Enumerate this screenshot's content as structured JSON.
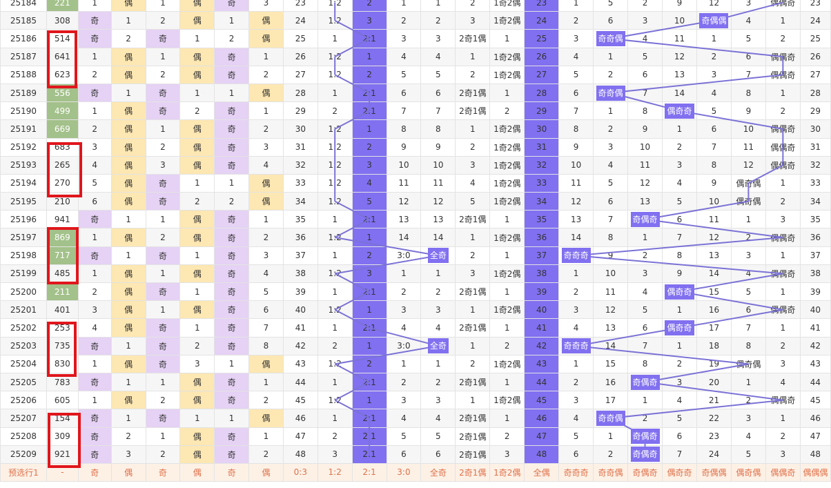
{
  "footer_label": "预选行1",
  "footer_cells": [
    "-",
    "奇",
    "偶",
    "奇",
    "偶",
    "奇",
    "偶",
    "0:3",
    "1:2",
    "2:1",
    "3:0",
    "全奇",
    "2奇1偶",
    "1奇2偶",
    "全偶",
    "奇奇奇",
    "奇奇偶",
    "奇偶奇",
    "偶奇奇",
    "奇偶偶",
    "偶奇偶",
    "偶偶奇",
    "偶偶偶"
  ],
  "rows": [
    {
      "issue": "25184",
      "num": "221",
      "c": [
        "1",
        "偶",
        "1",
        "偶",
        "奇",
        "3",
        "23",
        "1:2",
        "2",
        "1",
        "1",
        "2",
        "1奇2偶",
        "23",
        "1",
        "5",
        "2",
        "9",
        "12",
        "3",
        "偶偶奇",
        "23"
      ]
    },
    {
      "issue": "25185",
      "num": "308",
      "c": [
        "奇",
        "1",
        "2",
        "偶",
        "1",
        "偶",
        "24",
        "1:2",
        "3",
        "2",
        "2",
        "3",
        "1奇2偶",
        "24",
        "2",
        "6",
        "3",
        "10",
        "奇偶偶",
        "4",
        "1",
        "24"
      ]
    },
    {
      "issue": "25186",
      "num": "514",
      "c": [
        "奇",
        "2",
        "奇",
        "1",
        "2",
        "偶",
        "25",
        "1",
        "2:1",
        "3",
        "3",
        "2奇1偶",
        "1",
        "25",
        "3",
        "奇奇偶",
        "4",
        "11",
        "1",
        "5",
        "2",
        "25"
      ]
    },
    {
      "issue": "25187",
      "num": "641",
      "c": [
        "1",
        "偶",
        "1",
        "偶",
        "奇",
        "1",
        "26",
        "1:2",
        "1",
        "4",
        "4",
        "1",
        "1奇2偶",
        "26",
        "4",
        "1",
        "5",
        "12",
        "2",
        "6",
        "偶偶奇",
        "26"
      ]
    },
    {
      "issue": "25188",
      "num": "623",
      "c": [
        "2",
        "偶",
        "2",
        "偶",
        "奇",
        "2",
        "27",
        "1:2",
        "2",
        "5",
        "5",
        "2",
        "1奇2偶",
        "27",
        "5",
        "2",
        "6",
        "13",
        "3",
        "7",
        "偶偶奇",
        "27"
      ]
    },
    {
      "issue": "25189",
      "num": "556",
      "c": [
        "奇",
        "1",
        "奇",
        "1",
        "1",
        "偶",
        "28",
        "1",
        "2:1",
        "6",
        "6",
        "2奇1偶",
        "1",
        "28",
        "6",
        "奇奇偶",
        "7",
        "14",
        "4",
        "8",
        "1",
        "28"
      ]
    },
    {
      "issue": "25190",
      "num": "499",
      "c": [
        "1",
        "偶",
        "奇",
        "2",
        "奇",
        "1",
        "29",
        "2",
        "2:1",
        "7",
        "7",
        "2奇1偶",
        "2",
        "29",
        "7",
        "1",
        "8",
        "偶奇奇",
        "5",
        "9",
        "2",
        "29"
      ]
    },
    {
      "issue": "25191",
      "num": "669",
      "c": [
        "2",
        "偶",
        "1",
        "偶",
        "奇",
        "2",
        "30",
        "1:2",
        "1",
        "8",
        "8",
        "1",
        "1奇2偶",
        "30",
        "8",
        "2",
        "9",
        "1",
        "6",
        "10",
        "偶偶奇",
        "30"
      ]
    },
    {
      "issue": "25192",
      "num": "683",
      "c": [
        "3",
        "偶",
        "2",
        "偶",
        "奇",
        "3",
        "31",
        "1:2",
        "2",
        "9",
        "9",
        "2",
        "1奇2偶",
        "31",
        "9",
        "3",
        "10",
        "2",
        "7",
        "11",
        "偶偶奇",
        "31"
      ]
    },
    {
      "issue": "25193",
      "num": "265",
      "c": [
        "4",
        "偶",
        "3",
        "偶",
        "奇",
        "4",
        "32",
        "1:2",
        "3",
        "10",
        "10",
        "3",
        "1奇2偶",
        "32",
        "10",
        "4",
        "11",
        "3",
        "8",
        "12",
        "偶偶奇",
        "32"
      ]
    },
    {
      "issue": "25194",
      "num": "270",
      "c": [
        "5",
        "偶",
        "奇",
        "1",
        "1",
        "偶",
        "33",
        "1:2",
        "4",
        "11",
        "11",
        "4",
        "1奇2偶",
        "33",
        "11",
        "5",
        "12",
        "4",
        "9",
        "偶奇偶",
        "1",
        "33"
      ]
    },
    {
      "issue": "25195",
      "num": "210",
      "c": [
        "6",
        "偶",
        "奇",
        "2",
        "2",
        "偶",
        "34",
        "1:2",
        "5",
        "12",
        "12",
        "5",
        "1奇2偶",
        "34",
        "12",
        "6",
        "13",
        "5",
        "10",
        "偶奇偶",
        "2",
        "34"
      ]
    },
    {
      "issue": "25196",
      "num": "941",
      "c": [
        "奇",
        "1",
        "1",
        "偶",
        "奇",
        "1",
        "35",
        "1",
        "2:1",
        "13",
        "13",
        "2奇1偶",
        "1",
        "35",
        "13",
        "7",
        "奇偶奇",
        "6",
        "11",
        "1",
        "3",
        "35"
      ]
    },
    {
      "issue": "25197",
      "num": "869",
      "c": [
        "1",
        "偶",
        "2",
        "偶",
        "奇",
        "2",
        "36",
        "1:2",
        "1",
        "14",
        "14",
        "1",
        "1奇2偶",
        "36",
        "14",
        "8",
        "1",
        "7",
        "12",
        "2",
        "偶偶奇",
        "36"
      ]
    },
    {
      "issue": "25198",
      "num": "717",
      "c": [
        "奇",
        "1",
        "奇",
        "1",
        "奇",
        "3",
        "37",
        "1",
        "2",
        "3:0",
        "全奇",
        "2",
        "1",
        "37",
        "奇奇奇",
        "9",
        "2",
        "8",
        "13",
        "3",
        "1",
        "37"
      ]
    },
    {
      "issue": "25199",
      "num": "485",
      "c": [
        "1",
        "偶",
        "1",
        "偶",
        "奇",
        "4",
        "38",
        "1:2",
        "3",
        "1",
        "1",
        "3",
        "1奇2偶",
        "38",
        "1",
        "10",
        "3",
        "9",
        "14",
        "4",
        "偶偶奇",
        "38"
      ]
    },
    {
      "issue": "25200",
      "num": "211",
      "c": [
        "2",
        "偶",
        "奇",
        "1",
        "奇",
        "5",
        "39",
        "1",
        "2:1",
        "2",
        "2",
        "2奇1偶",
        "1",
        "39",
        "2",
        "11",
        "4",
        "偶奇奇",
        "15",
        "5",
        "1",
        "39"
      ]
    },
    {
      "issue": "25201",
      "num": "401",
      "c": [
        "3",
        "偶",
        "1",
        "偶",
        "奇",
        "6",
        "40",
        "1:2",
        "1",
        "3",
        "3",
        "1",
        "1奇2偶",
        "40",
        "3",
        "12",
        "5",
        "1",
        "16",
        "6",
        "偶偶奇",
        "40"
      ]
    },
    {
      "issue": "25202",
      "num": "253",
      "c": [
        "4",
        "偶",
        "奇",
        "1",
        "奇",
        "7",
        "41",
        "1",
        "2:1",
        "4",
        "4",
        "2奇1偶",
        "1",
        "41",
        "4",
        "13",
        "6",
        "偶奇奇",
        "17",
        "7",
        "1",
        "41"
      ]
    },
    {
      "issue": "25203",
      "num": "735",
      "c": [
        "奇",
        "1",
        "奇",
        "2",
        "奇",
        "8",
        "42",
        "2",
        "1",
        "3:0",
        "全奇",
        "1",
        "2",
        "42",
        "奇奇奇",
        "14",
        "7",
        "1",
        "18",
        "8",
        "2",
        "42"
      ]
    },
    {
      "issue": "25204",
      "num": "830",
      "c": [
        "1",
        "偶",
        "奇",
        "3",
        "1",
        "偶",
        "43",
        "1:2",
        "2",
        "1",
        "1",
        "2",
        "1奇2偶",
        "43",
        "1",
        "15",
        "8",
        "2",
        "19",
        "偶奇偶",
        "3",
        "43"
      ]
    },
    {
      "issue": "25205",
      "num": "783",
      "c": [
        "奇",
        "1",
        "1",
        "偶",
        "奇",
        "1",
        "44",
        "1",
        "2:1",
        "2",
        "2",
        "2奇1偶",
        "1",
        "44",
        "2",
        "16",
        "奇偶奇",
        "3",
        "20",
        "1",
        "4",
        "44"
      ]
    },
    {
      "issue": "25206",
      "num": "605",
      "c": [
        "1",
        "偶",
        "2",
        "偶",
        "奇",
        "2",
        "45",
        "1:2",
        "1",
        "3",
        "3",
        "1",
        "1奇2偶",
        "45",
        "3",
        "17",
        "1",
        "4",
        "21",
        "2",
        "偶偶奇",
        "45"
      ]
    },
    {
      "issue": "25207",
      "num": "154",
      "c": [
        "奇",
        "1",
        "奇",
        "1",
        "1",
        "偶",
        "46",
        "1",
        "2:1",
        "4",
        "4",
        "2奇1偶",
        "1",
        "46",
        "4",
        "奇奇偶",
        "2",
        "5",
        "22",
        "3",
        "1",
        "46"
      ]
    },
    {
      "issue": "25208",
      "num": "309",
      "c": [
        "奇",
        "2",
        "1",
        "偶",
        "奇",
        "1",
        "47",
        "2",
        "2:1",
        "5",
        "5",
        "2奇1偶",
        "2",
        "47",
        "5",
        "1",
        "奇偶奇",
        "6",
        "23",
        "4",
        "2",
        "47"
      ]
    },
    {
      "issue": "25209",
      "num": "921",
      "c": [
        "奇",
        "3",
        "2",
        "偶",
        "奇",
        "2",
        "48",
        "3",
        "2:1",
        "6",
        "6",
        "2奇1偶",
        "3",
        "48",
        "6",
        "2",
        "奇偶奇",
        "7",
        "24",
        "5",
        "3",
        "48"
      ]
    }
  ],
  "colors": {
    "purple_band": "#8170f0",
    "odd_bg": "#e6d2f5",
    "even_bg": "#fde7b2",
    "green": "#a3c18a",
    "red_box": "#e0161c",
    "line": "#7b72d6"
  }
}
